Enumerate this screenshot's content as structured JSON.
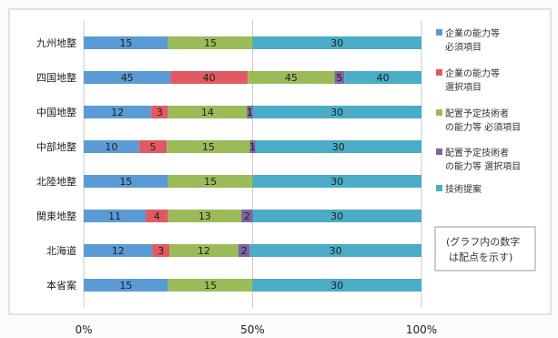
{
  "chart_data": {
    "type": "bar",
    "orientation": "horizontal",
    "stacking": "percent",
    "categories": [
      "九州地整",
      "四国地整",
      "中国地整",
      "中部地整",
      "北陸地整",
      "関東地整",
      "北海道",
      "本省案"
    ],
    "series": [
      {
        "name": "企業の能力等 必須項目",
        "color": "#5b9bd5",
        "values": [
          15,
          45,
          12,
          10,
          15,
          11,
          12,
          15
        ]
      },
      {
        "name": "企業の能力等 選択項目",
        "color": "#e05a63",
        "values": [
          0,
          40,
          3,
          5,
          0,
          4,
          3,
          0
        ]
      },
      {
        "name": "配置予定技術者の能力等 必須項目",
        "color": "#9bbb59",
        "values": [
          15,
          45,
          14,
          15,
          15,
          13,
          12,
          15
        ]
      },
      {
        "name": "配置予定技術者の能力等 選択項目",
        "color": "#8064a2",
        "values": [
          0,
          5,
          1,
          1,
          0,
          2,
          2,
          0
        ]
      },
      {
        "name": "技術提案",
        "color": "#4aacc6",
        "values": [
          30,
          40,
          30,
          30,
          30,
          30,
          30,
          30
        ]
      }
    ],
    "xticks": [
      "0%",
      "50%",
      "100%"
    ],
    "xlim": [
      0,
      100
    ],
    "grid": true,
    "legend_position": "right",
    "note": "(グラフ内の数字は配点を示す)"
  }
}
